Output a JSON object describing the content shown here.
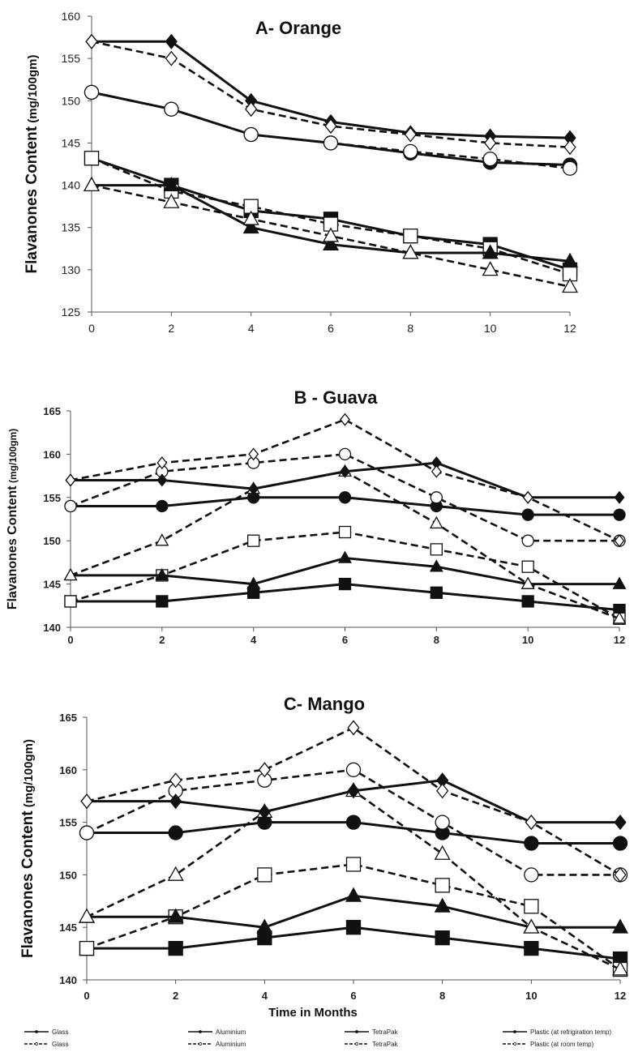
{
  "colors": {
    "line": "#111111",
    "axis": "#555555",
    "background": "#ffffff"
  },
  "chart_data": [
    {
      "id": "orange",
      "type": "line",
      "title": "A- Orange",
      "ylabel": "Flavanones Content (mg/100gm)",
      "ylabel_main": "Flavanones Content",
      "ylabel_unit": " (mg/100gm)",
      "xlabel": "",
      "x": [
        0,
        2,
        4,
        6,
        8,
        10,
        12
      ],
      "xticks": [
        "0",
        "2",
        "4",
        "6",
        "8",
        "10",
        "12"
      ],
      "ylim": [
        125,
        160
      ],
      "yticks": [
        "125",
        "130",
        "135",
        "140",
        "145",
        "150",
        "155",
        "160"
      ],
      "grid": false,
      "series": [
        {
          "name": "Glass",
          "style": "solid",
          "marker": "circle",
          "values": [
            151,
            149,
            146,
            145,
            143.8,
            142.7,
            142.4
          ]
        },
        {
          "name": "Glass",
          "style": "dashed",
          "marker": "circle",
          "values": [
            151,
            149,
            146,
            145,
            144,
            143.1,
            142
          ]
        },
        {
          "name": "Aluminium",
          "style": "solid",
          "marker": "square",
          "values": [
            143.2,
            140,
            137,
            136,
            134,
            133,
            130
          ]
        },
        {
          "name": "Aluminium",
          "style": "dashed",
          "marker": "square",
          "values": [
            143.2,
            139.3,
            137.5,
            135.4,
            134,
            132.5,
            129.5
          ]
        },
        {
          "name": "TetraPak",
          "style": "solid",
          "marker": "triangle",
          "values": [
            140,
            140,
            135,
            133,
            132,
            132,
            131
          ]
        },
        {
          "name": "TetraPak",
          "style": "dashed",
          "marker": "triangle",
          "values": [
            140,
            138,
            136,
            134,
            132,
            130,
            128
          ]
        },
        {
          "name": "Plastic (at refrigiration temp)",
          "style": "solid",
          "marker": "diamond",
          "values": [
            157,
            157,
            150,
            147.5,
            146.2,
            145.8,
            145.6
          ]
        },
        {
          "name": "Plastic (at room temp)",
          "style": "dashed",
          "marker": "diamond",
          "values": [
            157,
            155,
            149,
            147,
            146,
            145,
            144.5
          ]
        }
      ]
    },
    {
      "id": "guava",
      "type": "line",
      "title": "B - Guava",
      "ylabel": "Flavanones Content (mg/100gm)",
      "ylabel_main": "Flavanones Content",
      "ylabel_unit": " (mg/100gm)",
      "xlabel": "",
      "x": [
        0,
        2,
        4,
        6,
        8,
        10,
        12
      ],
      "xticks": [
        "0",
        "2",
        "4",
        "6",
        "8",
        "10",
        "12"
      ],
      "ylim": [
        140,
        165
      ],
      "yticks": [
        "140",
        "145",
        "150",
        "155",
        "160",
        "165"
      ],
      "grid": false,
      "series": [
        {
          "name": "Glass",
          "style": "solid",
          "marker": "circle",
          "values": [
            154,
            154,
            155,
            155,
            154,
            153,
            153
          ]
        },
        {
          "name": "Glass",
          "style": "dashed",
          "marker": "circle",
          "values": [
            154,
            158,
            159,
            160,
            155,
            150,
            150
          ]
        },
        {
          "name": "Aluminium",
          "style": "solid",
          "marker": "square",
          "values": [
            143,
            143,
            144,
            145,
            144,
            143,
            142
          ]
        },
        {
          "name": "Aluminium",
          "style": "dashed",
          "marker": "square",
          "values": [
            143,
            146,
            150,
            151,
            149,
            147,
            141
          ]
        },
        {
          "name": "TetraPak",
          "style": "solid",
          "marker": "triangle",
          "values": [
            146,
            146,
            145,
            148,
            147,
            145,
            145
          ]
        },
        {
          "name": "TetraPak",
          "style": "dashed",
          "marker": "triangle",
          "values": [
            146,
            150,
            156,
            158,
            152,
            145,
            141
          ]
        },
        {
          "name": "Plastic (at refrigiration temp)",
          "style": "solid",
          "marker": "diamond",
          "values": [
            157,
            157,
            156,
            158,
            159,
            155,
            155
          ]
        },
        {
          "name": "Plastic (at room temp)",
          "style": "dashed",
          "marker": "diamond",
          "values": [
            157,
            159,
            160,
            164,
            158,
            155,
            150
          ]
        }
      ]
    },
    {
      "id": "mango",
      "type": "line",
      "title": "C- Mango",
      "ylabel": "Flavanones Content (mg/100gm)",
      "ylabel_main": "Flavanones Content",
      "ylabel_unit": " (mg/100gm)",
      "xlabel": "Time in Months",
      "x": [
        0,
        2,
        4,
        6,
        8,
        10,
        12
      ],
      "xticks": [
        "0",
        "2",
        "4",
        "6",
        "8",
        "10",
        "12"
      ],
      "ylim": [
        140,
        165
      ],
      "yticks": [
        "140",
        "145",
        "150",
        "155",
        "160",
        "165"
      ],
      "grid": false,
      "series": [
        {
          "name": "Glass",
          "style": "solid",
          "marker": "circle",
          "values": [
            154,
            154,
            155,
            155,
            154,
            153,
            153
          ]
        },
        {
          "name": "Glass",
          "style": "dashed",
          "marker": "circle",
          "values": [
            154,
            158,
            159,
            160,
            155,
            150,
            150
          ]
        },
        {
          "name": "Aluminium",
          "style": "solid",
          "marker": "square",
          "values": [
            143,
            143,
            144,
            145,
            144,
            143,
            142
          ]
        },
        {
          "name": "Aluminium",
          "style": "dashed",
          "marker": "square",
          "values": [
            143,
            146,
            150,
            151,
            149,
            147,
            141
          ]
        },
        {
          "name": "TetraPak",
          "style": "solid",
          "marker": "triangle",
          "values": [
            146,
            146,
            145,
            148,
            147,
            145,
            145
          ]
        },
        {
          "name": "TetraPak",
          "style": "dashed",
          "marker": "triangle",
          "values": [
            146,
            150,
            156,
            158,
            152,
            145,
            141
          ]
        },
        {
          "name": "Plastic (at refrigiration temp)",
          "style": "solid",
          "marker": "diamond",
          "values": [
            157,
            157,
            156,
            158,
            159,
            155,
            155
          ]
        },
        {
          "name": "Plastic (at room temp)",
          "style": "dashed",
          "marker": "diamond",
          "values": [
            157,
            159,
            160,
            164,
            158,
            155,
            150
          ]
        }
      ]
    }
  ],
  "legend": {
    "placement": "bottom",
    "entries": [
      {
        "label": "Glass",
        "style": "solid"
      },
      {
        "label": "Aluminium",
        "style": "solid"
      },
      {
        "label": "TetraPak",
        "style": "solid"
      },
      {
        "label": "Plastic (at refrigiration temp)",
        "style": "solid"
      },
      {
        "label": "Glass",
        "style": "dashed"
      },
      {
        "label": "Aluminium",
        "style": "dashed"
      },
      {
        "label": "TetraPak",
        "style": "dashed"
      },
      {
        "label": "Plastic (at room temp)",
        "style": "dashed"
      }
    ]
  }
}
